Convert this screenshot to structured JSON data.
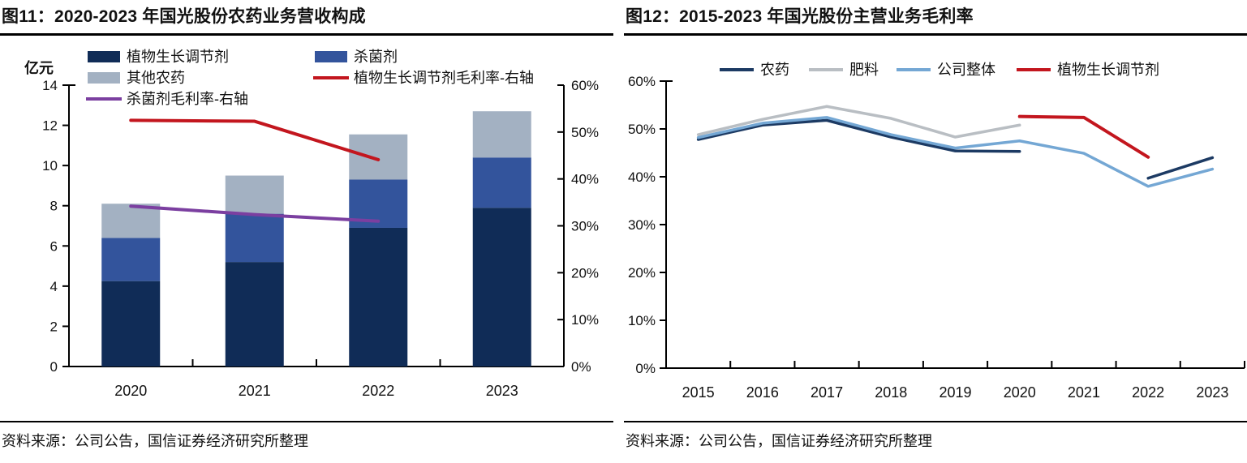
{
  "figures": [
    {
      "id": "fig11",
      "title": "图11：2020-2023 年国光股份农药业务营收构成",
      "source": "资料来源：公司公告，国信证券经济研究所整理",
      "chart_data": {
        "type": "bar",
        "unit_label": "亿元",
        "categories": [
          "2020",
          "2021",
          "2022",
          "2023"
        ],
        "bar_series": [
          {
            "name": "植物生长调节剂",
            "color": "#102c57",
            "values": [
              4.25,
              5.2,
              6.9,
              7.9
            ]
          },
          {
            "name": "杀菌剂",
            "color": "#33549c",
            "values": [
              2.15,
              2.4,
              2.4,
              2.5
            ]
          },
          {
            "name": "其他农药",
            "color": "#a3b1c2",
            "values": [
              1.7,
              1.9,
              2.25,
              2.3
            ]
          }
        ],
        "line_series": [
          {
            "name": "植物生长调节剂毛利率-右轴",
            "color": "#c3161e",
            "axis": "right",
            "values": [
              52.5,
              52.3,
              44.1,
              null
            ]
          },
          {
            "name": "杀菌剂毛利率-右轴",
            "color": "#7b3fa0",
            "axis": "right",
            "values": [
              34.2,
              32.4,
              31.0,
              null
            ]
          }
        ],
        "legend_columns": [
          [
            "植物生长调节剂",
            "其他农药",
            "杀菌剂毛利率-右轴"
          ],
          [
            "杀菌剂",
            "植物生长调节剂毛利率-右轴"
          ]
        ],
        "left_axis": {
          "min": 0,
          "max": 14,
          "step": 2,
          "labels": [
            "0",
            "2",
            "4",
            "6",
            "8",
            "10",
            "12",
            "14"
          ]
        },
        "right_axis": {
          "min": 0,
          "max": 60,
          "step": 10,
          "labels": [
            "0%",
            "10%",
            "20%",
            "30%",
            "40%",
            "50%",
            "60%"
          ]
        }
      }
    },
    {
      "id": "fig12",
      "title": "图12：2015-2023 年国光股份主营业务毛利率",
      "source": "资料来源：公司公告，国信证券经济研究所整理",
      "chart_data": {
        "type": "line",
        "categories": [
          "2015",
          "2016",
          "2017",
          "2018",
          "2019",
          "2020",
          "2021",
          "2022",
          "2023"
        ],
        "series": [
          {
            "name": "农药",
            "color": "#1c3a63",
            "values": [
              47.8,
              50.8,
              51.8,
              48.3,
              45.4,
              45.3,
              null,
              39.7,
              44.0
            ]
          },
          {
            "name": "肥料",
            "color": "#b9bec3",
            "values": [
              48.8,
              52.0,
              54.7,
              52.2,
              48.3,
              50.8,
              null,
              null,
              null
            ]
          },
          {
            "name": "公司整体",
            "color": "#74a7d4",
            "values": [
              48.2,
              51.2,
              52.4,
              48.8,
              46.0,
              47.5,
              44.9,
              38.0,
              41.6
            ]
          },
          {
            "name": "植物生长调节剂",
            "color": "#c3161e",
            "values": [
              null,
              null,
              null,
              null,
              null,
              52.6,
              52.4,
              44.1,
              null
            ]
          }
        ],
        "y_axis": {
          "min": 0,
          "max": 60,
          "step": 10,
          "labels": [
            "0%",
            "10%",
            "20%",
            "30%",
            "40%",
            "50%",
            "60%"
          ]
        },
        "grid": "off",
        "legend_position": "top"
      }
    }
  ]
}
